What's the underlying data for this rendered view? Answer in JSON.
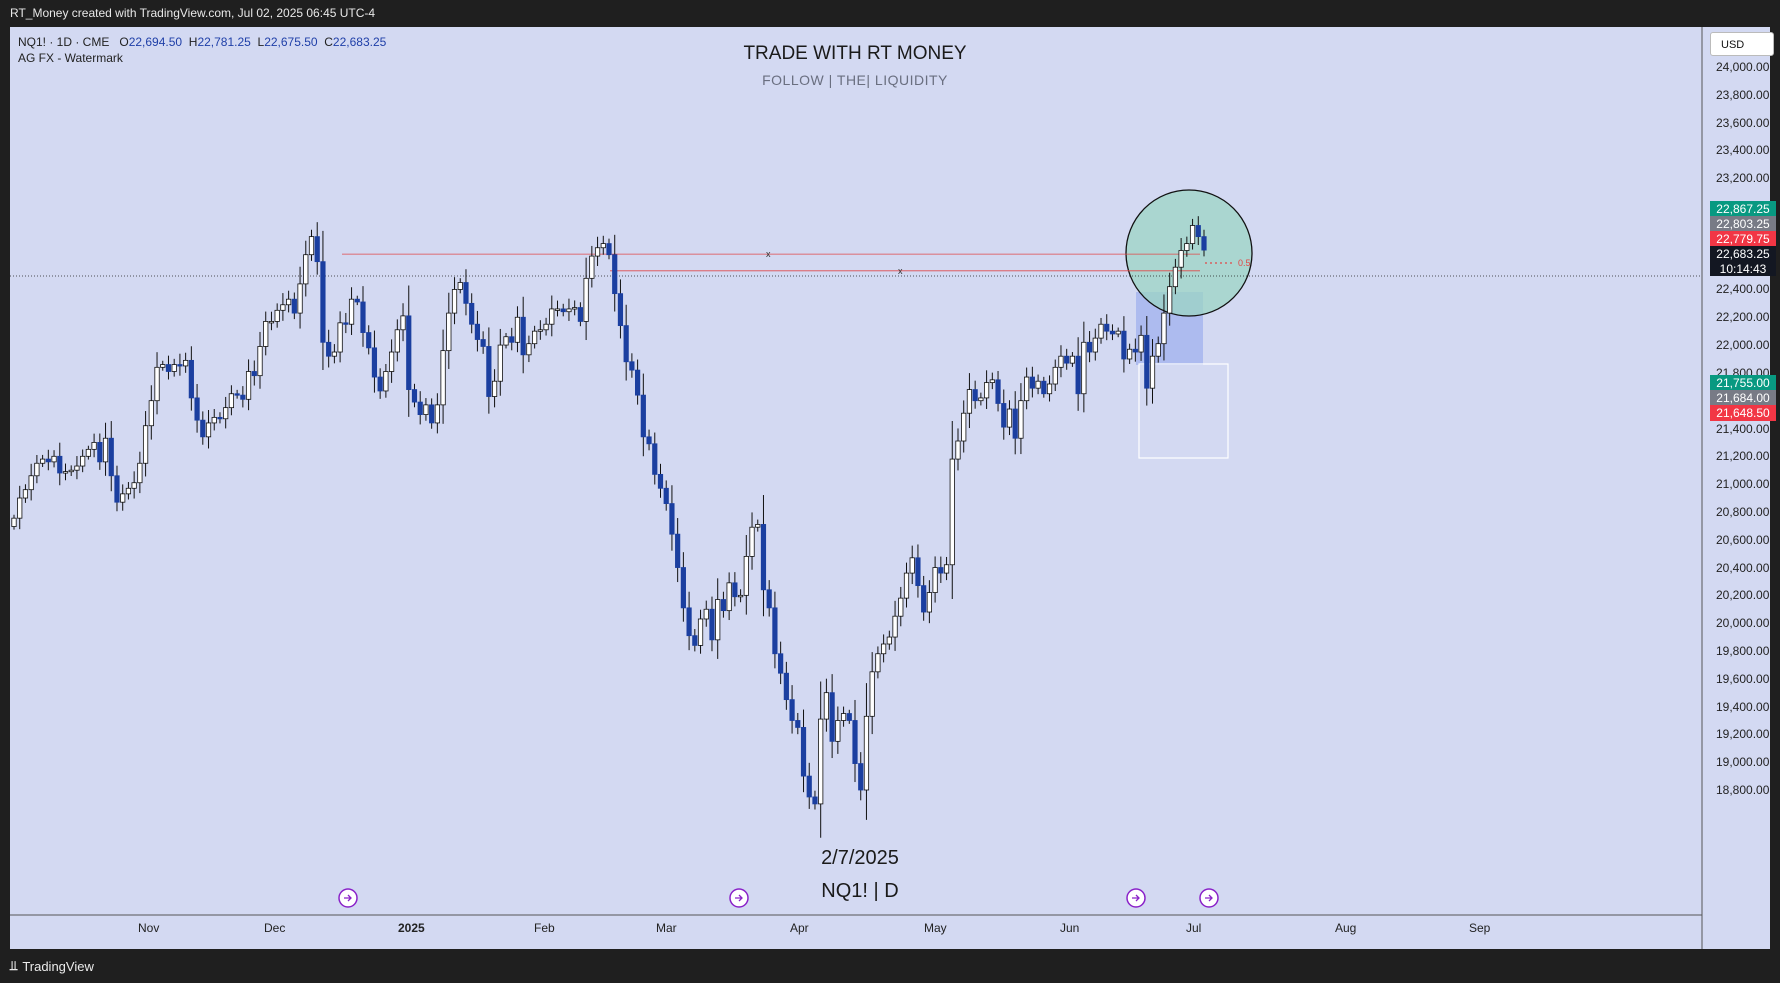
{
  "header": {
    "text": "RT_Money created with TradingView.com, Jul 02, 2025 06:45 UTC-4"
  },
  "legend": {
    "symbol_line": "NQ1! · 1D · CME",
    "open_label": "O",
    "open": "22,694.50",
    "high_label": "H",
    "high": "22,781.25",
    "low_label": "L",
    "low": "22,675.50",
    "close_label": "C",
    "close": "22,683.25",
    "indicator": "AG FX - Watermark"
  },
  "watermark": {
    "title": "TRADE WITH RT MONEY",
    "subtitle": "FOLLOW   |   THE|   LIQUIDITY",
    "date": "2/7/2025",
    "symbol": "NQ1! | D"
  },
  "currency": "USD",
  "footer": {
    "brand": "TradingView"
  },
  "annotations": {
    "line_markers": [
      "x",
      "x"
    ],
    "fib_label": "0.5"
  },
  "colors": {
    "chart_bg": "#d3d9f2",
    "bear": "#1b3fa0",
    "bull": "#ffffff",
    "wick": "#111111",
    "green_tag": "#089981",
    "red_tag": "#f23645",
    "gray_tag": "#787b86",
    "circle_fill": "#9cd4c4",
    "box_fill": "#8ea3ec",
    "event_icon": "#8a22c9"
  },
  "price_tags": [
    {
      "value": "22,867.25",
      "color": "#089981"
    },
    {
      "value": "22,803.25",
      "color": "#787b86"
    },
    {
      "value": "22,779.75",
      "color": "#f23645"
    },
    {
      "value": "22,683.25",
      "color": "#131722",
      "timer": "10:14:43"
    },
    {
      "value": "21,755.00",
      "color": "#089981"
    },
    {
      "value": "21,684.00",
      "color": "#787b86"
    },
    {
      "value": "21,648.50",
      "color": "#f23645"
    }
  ],
  "chart_data": {
    "type": "candlestick",
    "symbol": "NQ1!",
    "timeframe": "1D",
    "ylim": [
      18700,
      24300
    ],
    "y_ticks": [
      "24,000.00",
      "23,800.00",
      "23,600.00",
      "23,400.00",
      "23,200.00",
      "23,000.00",
      "22,800.00",
      "22,600.00",
      "22,400.00",
      "22,200.00",
      "22,000.00",
      "21,800.00",
      "21,600.00",
      "21,400.00",
      "21,200.00",
      "21,000.00",
      "20,800.00",
      "20,600.00",
      "20,400.00",
      "20,200.00",
      "20,000.00",
      "19,800.00",
      "19,600.00",
      "19,400.00",
      "19,200.00",
      "19,000.00",
      "18,800.00"
    ],
    "x_ticks": [
      "Nov",
      "Dec",
      "2025",
      "Feb",
      "Mar",
      "Apr",
      "May",
      "Jun",
      "Jul",
      "Aug",
      "Sep"
    ],
    "last_price": 22683.25,
    "levels": [
      22870,
      22750
    ],
    "close_series": [
      20755,
      20900,
      20960,
      21060,
      21150,
      21180,
      21160,
      21200,
      21080,
      21090,
      21100,
      21130,
      21200,
      21250,
      21300,
      21160,
      21330,
      21060,
      20870,
      20930,
      20970,
      21010,
      21150,
      21420,
      21600,
      21840,
      21860,
      21810,
      21860,
      21850,
      21890,
      21620,
      21460,
      21340,
      21440,
      21480,
      21470,
      21550,
      21650,
      21640,
      21610,
      21810,
      21780,
      21990,
      22170,
      22170,
      22250,
      22290,
      22330,
      22230,
      22440,
      22650,
      22780,
      22600,
      22020,
      21920,
      21950,
      22160,
      22150,
      22330,
      22310,
      22090,
      21980,
      21770,
      21670,
      21810,
      21950,
      22110,
      22210,
      21680,
      21590,
      21500,
      21570,
      21440,
      21570,
      21960,
      22230,
      22400,
      22450,
      22300,
      22150,
      22040,
      21990,
      21630,
      21740,
      22000,
      22060,
      22020,
      22200,
      21930,
      22010,
      22100,
      22110,
      22150,
      22260,
      22260,
      22240,
      22260,
      22270,
      22170,
      22480,
      22640,
      22700,
      22730,
      22650,
      22370,
      22140,
      21880,
      21820,
      21640,
      21340,
      21290,
      21070,
      20970,
      20860,
      20640,
      20400,
      20110,
      19910,
      19840,
      20030,
      20100,
      19880,
      20170,
      20090,
      20290,
      20190,
      20200,
      20480,
      20690,
      20710,
      20240,
      20110,
      19780,
      19640,
      19450,
      19300,
      19250,
      18900,
      18750,
      18700,
      19310,
      19500,
      19150,
      19300,
      19350,
      19300,
      18990,
      18800,
      19330,
      19650,
      19780,
      19850,
      19900,
      20050,
      20180,
      20360,
      20470,
      20270,
      20080,
      20220,
      20400,
      20360,
      20420,
      21180,
      21310,
      21510,
      21680,
      21600,
      21620,
      21730,
      21750,
      21580,
      21410,
      21540,
      21330,
      21600,
      21770,
      21690,
      21740,
      21650,
      21720,
      21840,
      21920,
      21870,
      21920,
      21650,
      22020,
      21950,
      22050,
      22150,
      22100,
      22080,
      22100,
      21900,
      21970,
      21950,
      22070,
      21690,
      21920,
      22010,
      22230,
      22420,
      22560,
      22680,
      22730,
      22860,
      22780,
      22683.25
    ]
  }
}
